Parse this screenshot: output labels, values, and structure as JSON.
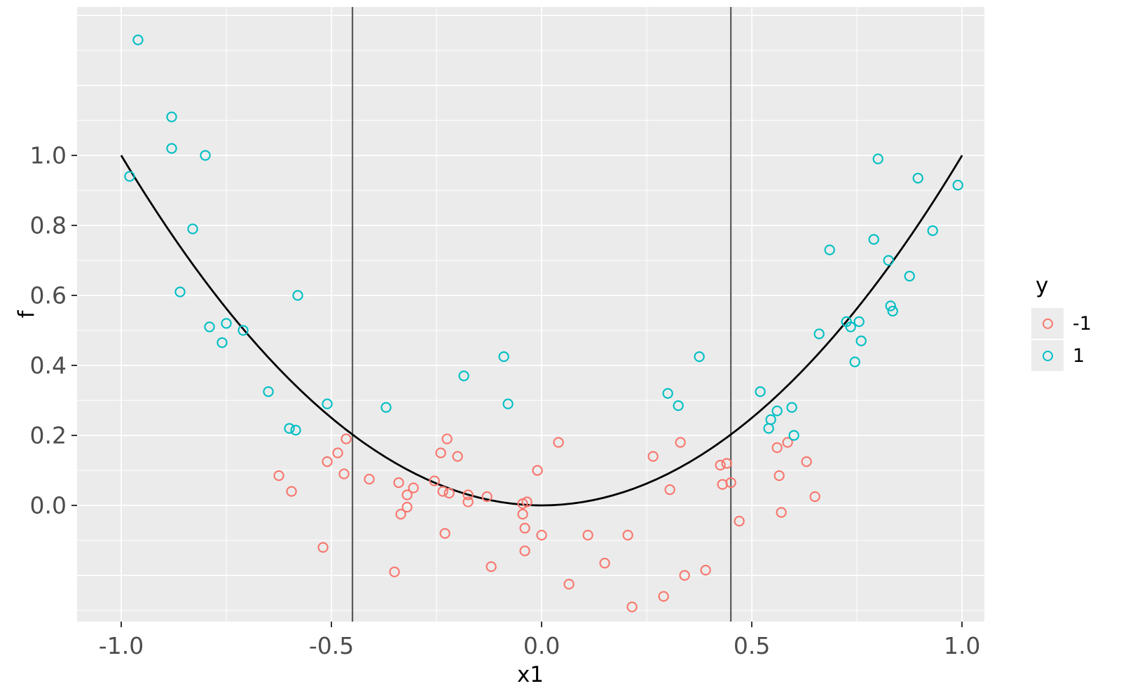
{
  "chart_data": {
    "type": "scatter",
    "title": "",
    "xlabel": "x1",
    "ylabel": "f",
    "xlim": [
      -1.105,
      1.053
    ],
    "ylim": [
      -0.332,
      1.424
    ],
    "grid": "on",
    "panel_bg": "#EBEBEB",
    "gridline_color": "#FFFFFF",
    "x_ticks": {
      "values": [
        -1.0,
        -0.5,
        0.0,
        0.5,
        1.0
      ],
      "labels": [
        "-1.0",
        "-0.5",
        "0.0",
        "0.5",
        "1.0"
      ]
    },
    "y_ticks": {
      "values": [
        0.0,
        0.2,
        0.4,
        0.6,
        0.8,
        1.0
      ],
      "labels": [
        "0.0",
        "0.2",
        "0.4",
        "0.6",
        "0.8",
        "1.0"
      ]
    },
    "x_major_gridlines": [
      -1.0,
      -0.5,
      0.0,
      0.5,
      1.0
    ],
    "x_minor_gridlines": [
      -0.75,
      -0.25,
      0.25,
      0.75
    ],
    "y_major_gridlines": [
      -0.2,
      0.0,
      0.2,
      0.4,
      0.6,
      0.8,
      1.0,
      1.2,
      1.4
    ],
    "y_minor_gridlines": [
      -0.3,
      -0.1,
      0.1,
      0.3,
      0.5,
      0.7,
      0.9,
      1.1,
      1.3
    ],
    "reference_vlines": {
      "x": [
        -0.45,
        0.45
      ],
      "color": "#595959"
    },
    "curve": {
      "label": "f = x1^2",
      "type": "parabola",
      "x_range": [
        -1,
        1
      ],
      "color": "#000000"
    },
    "legend": {
      "title": "y",
      "position": "right",
      "entries": [
        {
          "label": "-1",
          "color": "#F8766D"
        },
        {
          "label": "1",
          "color": "#00BFC4"
        }
      ]
    },
    "series": [
      {
        "name": "-1",
        "color": "#F8766D",
        "marker": "open-circle",
        "points": [
          [
            -0.465,
            0.19
          ],
          [
            -0.485,
            0.15
          ],
          [
            -0.51,
            0.125
          ],
          [
            -0.47,
            0.09
          ],
          [
            -0.625,
            0.085
          ],
          [
            -0.41,
            0.075
          ],
          [
            -0.595,
            0.04
          ],
          [
            -0.34,
            0.065
          ],
          [
            -0.335,
            -0.025
          ],
          [
            -0.52,
            -0.12
          ],
          [
            -0.35,
            -0.19
          ],
          [
            -0.225,
            0.19
          ],
          [
            -0.24,
            0.15
          ],
          [
            -0.2,
            0.14
          ],
          [
            0.04,
            0.18
          ],
          [
            -0.01,
            0.1
          ],
          [
            0.33,
            0.18
          ],
          [
            0.265,
            0.14
          ],
          [
            -0.305,
            0.05
          ],
          [
            -0.32,
            0.03
          ],
          [
            -0.255,
            0.07
          ],
          [
            -0.235,
            0.04
          ],
          [
            -0.22,
            0.035
          ],
          [
            -0.175,
            0.03
          ],
          [
            -0.175,
            0.01
          ],
          [
            -0.13,
            0.025
          ],
          [
            -0.035,
            0.01
          ],
          [
            -0.045,
            0.005
          ],
          [
            -0.045,
            -0.025
          ],
          [
            -0.32,
            -0.005
          ],
          [
            0.305,
            0.045
          ],
          [
            -0.23,
            -0.08
          ],
          [
            0.0,
            -0.085
          ],
          [
            0.11,
            -0.085
          ],
          [
            0.205,
            -0.085
          ],
          [
            -0.04,
            -0.065
          ],
          [
            -0.04,
            -0.13
          ],
          [
            -0.12,
            -0.175
          ],
          [
            0.15,
            -0.165
          ],
          [
            0.34,
            -0.2
          ],
          [
            0.39,
            -0.185
          ],
          [
            0.065,
            -0.225
          ],
          [
            0.29,
            -0.26
          ],
          [
            0.215,
            -0.29
          ],
          [
            0.585,
            0.18
          ],
          [
            0.56,
            0.165
          ],
          [
            0.63,
            0.125
          ],
          [
            0.425,
            0.115
          ],
          [
            0.44,
            0.12
          ],
          [
            0.43,
            0.06
          ],
          [
            0.45,
            0.065
          ],
          [
            0.565,
            0.085
          ],
          [
            0.65,
            0.025
          ],
          [
            0.57,
            -0.02
          ],
          [
            0.47,
            -0.045
          ]
        ]
      },
      {
        "name": "1",
        "color": "#00BFC4",
        "marker": "open-circle",
        "points": [
          [
            -0.96,
            1.33
          ],
          [
            -0.98,
            0.94
          ],
          [
            -0.88,
            1.11
          ],
          [
            -0.88,
            1.02
          ],
          [
            -0.8,
            1.0
          ],
          [
            -0.83,
            0.79
          ],
          [
            -0.86,
            0.61
          ],
          [
            -0.58,
            0.6
          ],
          [
            -0.79,
            0.51
          ],
          [
            -0.75,
            0.52
          ],
          [
            -0.71,
            0.5
          ],
          [
            -0.76,
            0.465
          ],
          [
            -0.65,
            0.325
          ],
          [
            -0.51,
            0.29
          ],
          [
            -0.37,
            0.28
          ],
          [
            -0.6,
            0.22
          ],
          [
            -0.585,
            0.215
          ],
          [
            -0.185,
            0.37
          ],
          [
            -0.09,
            0.425
          ],
          [
            -0.08,
            0.29
          ],
          [
            0.3,
            0.32
          ],
          [
            0.325,
            0.285
          ],
          [
            0.375,
            0.425
          ],
          [
            0.8,
            0.99
          ],
          [
            0.895,
            0.935
          ],
          [
            0.99,
            0.915
          ],
          [
            0.93,
            0.785
          ],
          [
            0.79,
            0.76
          ],
          [
            0.685,
            0.73
          ],
          [
            0.825,
            0.7
          ],
          [
            0.875,
            0.655
          ],
          [
            0.83,
            0.57
          ],
          [
            0.835,
            0.555
          ],
          [
            0.725,
            0.525
          ],
          [
            0.735,
            0.51
          ],
          [
            0.755,
            0.525
          ],
          [
            0.66,
            0.49
          ],
          [
            0.76,
            0.47
          ],
          [
            0.745,
            0.41
          ],
          [
            0.52,
            0.325
          ],
          [
            0.595,
            0.28
          ],
          [
            0.56,
            0.27
          ],
          [
            0.545,
            0.245
          ],
          [
            0.54,
            0.22
          ],
          [
            0.6,
            0.2
          ]
        ]
      }
    ]
  }
}
